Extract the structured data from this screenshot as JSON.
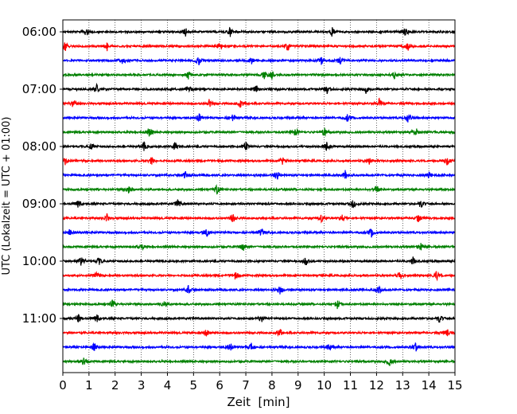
{
  "chart_data": {
    "type": "line",
    "xlabel": "Zeit  [min]",
    "ylabel": "UTC (Lokalzeit = UTC + 01:00)",
    "xlim": [
      0,
      15
    ],
    "x_ticks": [
      0,
      1,
      2,
      3,
      4,
      5,
      6,
      7,
      8,
      9,
      10,
      11,
      12,
      13,
      14,
      15
    ],
    "grid": "vertical dotted",
    "y_ticks": [
      {
        "label": "06:00",
        "row": 0
      },
      {
        "label": "07:00",
        "row": 4
      },
      {
        "label": "08:00",
        "row": 8
      },
      {
        "label": "09:00",
        "row": 12
      },
      {
        "label": "10:00",
        "row": 16
      },
      {
        "label": "11:00",
        "row": 20
      }
    ],
    "trace_colors": [
      "#000000",
      "#ff0000",
      "#0000ff",
      "#008000"
    ],
    "traces": [
      {
        "start": "06:00",
        "events": [
          0.9,
          4.7,
          6.4,
          10.3,
          13.1
        ]
      },
      {
        "start": "06:15",
        "events": [
          0.1,
          1.7,
          6.0,
          8.6,
          13.2
        ]
      },
      {
        "start": "06:30",
        "events": [
          2.3,
          5.2,
          7.2,
          9.9,
          10.6
        ]
      },
      {
        "start": "06:45",
        "events": [
          4.8,
          7.7,
          8.0,
          12.7
        ]
      },
      {
        "start": "07:00",
        "events": [
          1.3,
          4.8,
          7.4,
          10.1,
          11.6
        ]
      },
      {
        "start": "07:15",
        "events": [
          0.4,
          5.6,
          6.8,
          12.1
        ]
      },
      {
        "start": "07:30",
        "events": [
          5.2,
          6.5,
          10.9,
          13.2
        ]
      },
      {
        "start": "07:45",
        "events": [
          3.3,
          8.9,
          10.0,
          13.5
        ]
      },
      {
        "start": "08:00",
        "events": [
          1.1,
          3.1,
          4.3,
          7.0,
          10.1
        ]
      },
      {
        "start": "08:15",
        "events": [
          0.1,
          3.4,
          8.4,
          11.7,
          14.7
        ]
      },
      {
        "start": "08:30",
        "events": [
          4.7,
          8.2,
          10.8,
          14.0
        ]
      },
      {
        "start": "08:45",
        "events": [
          2.5,
          5.9,
          12.0
        ]
      },
      {
        "start": "09:00",
        "events": [
          0.6,
          4.4,
          11.1,
          13.7
        ]
      },
      {
        "start": "09:15",
        "events": [
          1.7,
          6.5,
          9.9,
          10.7,
          13.6
        ]
      },
      {
        "start": "09:30",
        "events": [
          0.3,
          5.5,
          7.6,
          11.8
        ]
      },
      {
        "start": "09:45",
        "events": [
          3.0,
          6.9,
          13.7
        ]
      },
      {
        "start": "10:00",
        "events": [
          0.7,
          1.4,
          9.3,
          13.4
        ]
      },
      {
        "start": "10:15",
        "events": [
          1.3,
          6.6,
          12.9,
          14.3
        ]
      },
      {
        "start": "10:30",
        "events": [
          4.8,
          8.3,
          12.1
        ]
      },
      {
        "start": "10:45",
        "events": [
          1.9,
          3.9,
          10.5
        ]
      },
      {
        "start": "11:00",
        "events": [
          0.6,
          1.3,
          7.6,
          14.4
        ]
      },
      {
        "start": "11:15",
        "events": [
          5.5,
          8.3,
          14.7
        ]
      },
      {
        "start": "11:30",
        "events": [
          1.2,
          6.4,
          7.2,
          10.2,
          13.5
        ]
      },
      {
        "start": "11:45",
        "events": [
          0.8,
          12.5
        ]
      }
    ]
  }
}
